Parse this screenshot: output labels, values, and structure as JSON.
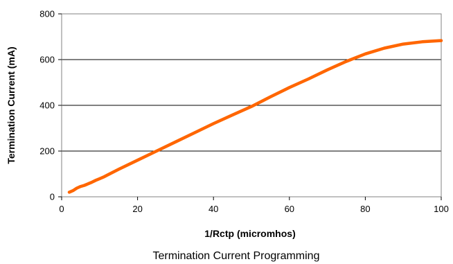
{
  "chart_data": {
    "type": "line",
    "title": "",
    "caption": "Termination Current Programming",
    "xlabel": "1/Rctp (micromhos)",
    "ylabel": "Termination Current (mA)",
    "xlim": [
      0,
      100
    ],
    "ylim": [
      0,
      800
    ],
    "x_ticks": [
      0,
      20,
      40,
      60,
      80,
      100
    ],
    "y_ticks": [
      0,
      200,
      400,
      600,
      800
    ],
    "x_tick_labels": [
      "0",
      "20",
      "40",
      "60",
      "80",
      "100"
    ],
    "y_tick_labels": [
      "0",
      "200",
      "400",
      "600",
      "800"
    ],
    "grid": "horizontal",
    "legend": "none",
    "series": [
      {
        "color": "#FF6600",
        "x": [
          2,
          3,
          4,
          5,
          6,
          7,
          8,
          9,
          10,
          11,
          12,
          15,
          20,
          25,
          30,
          35,
          40,
          45,
          50,
          55,
          60,
          65,
          70,
          75,
          80,
          85,
          90,
          95,
          100
        ],
        "y": [
          20,
          27,
          38,
          45,
          50,
          57,
          64,
          72,
          79,
          86,
          95,
          120,
          160,
          200,
          240,
          280,
          320,
          358,
          395,
          437,
          478,
          515,
          555,
          592,
          625,
          650,
          668,
          678,
          683
        ]
      }
    ]
  }
}
